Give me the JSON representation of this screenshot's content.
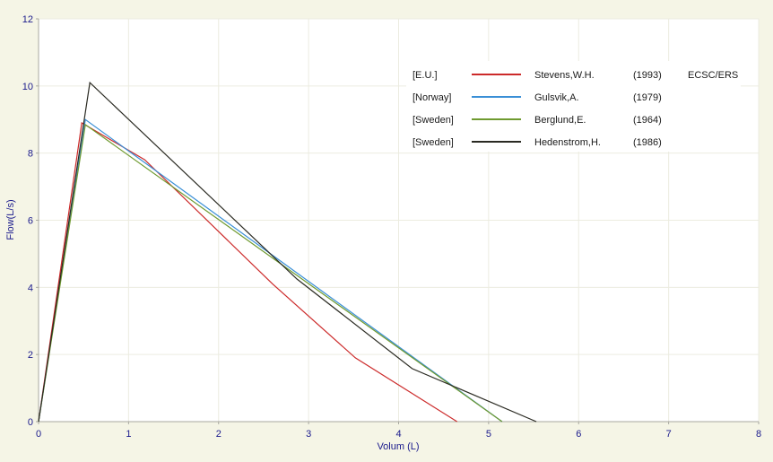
{
  "chart_data": {
    "type": "line",
    "xlabel": "Volum (L)",
    "ylabel": "Flow(L/s)",
    "xlim": [
      0,
      8
    ],
    "ylim": [
      0,
      12
    ],
    "x_ticks": [
      "0",
      "1",
      "2",
      "3",
      "4",
      "5",
      "6",
      "7",
      "8"
    ],
    "y_ticks": [
      "0",
      "2",
      "4",
      "6",
      "8",
      "10",
      "12"
    ],
    "grid": true,
    "legend_position": "top-right",
    "series": [
      {
        "region": "[E.U.]",
        "name": "Stevens,W.H.",
        "year": "(1993)",
        "note": "ECSC/ERS",
        "color": "#cc2a2a",
        "points": [
          [
            0,
            0
          ],
          [
            0.48,
            8.9
          ],
          [
            1.18,
            7.8
          ],
          [
            2.6,
            4.1
          ],
          [
            3.52,
            1.9
          ],
          [
            4.65,
            0
          ]
        ]
      },
      {
        "region": "[Norway]",
        "name": "Gulsvik,A.",
        "year": "(1979)",
        "note": "",
        "color": "#3a8fd6",
        "points": [
          [
            0,
            0
          ],
          [
            0.52,
            9.0
          ],
          [
            5.15,
            0
          ]
        ]
      },
      {
        "region": "[Sweden]",
        "name": "Berglund,E.",
        "year": "(1964)",
        "note": "",
        "color": "#6f9a30",
        "points": [
          [
            0,
            0
          ],
          [
            0.52,
            8.85
          ],
          [
            5.15,
            0
          ]
        ]
      },
      {
        "region": "[Sweden]",
        "name": "Hedenstrom,H.",
        "year": "(1986)",
        "note": "",
        "color": "#2a2a22",
        "points": [
          [
            0,
            0
          ],
          [
            0.57,
            10.1
          ],
          [
            2.87,
            4.25
          ],
          [
            4.15,
            1.58
          ],
          [
            5.53,
            0
          ]
        ]
      }
    ]
  }
}
